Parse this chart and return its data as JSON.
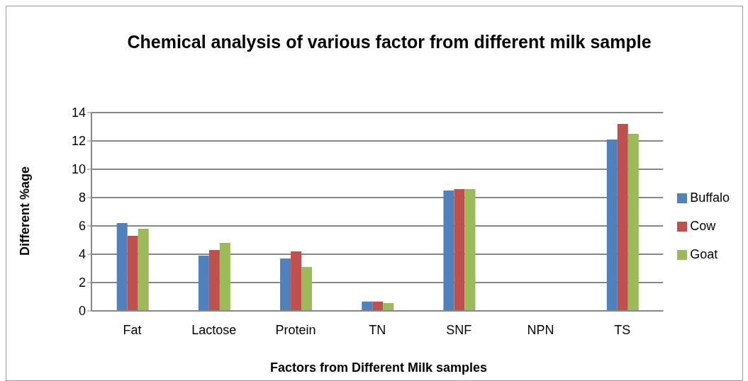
{
  "chart_data": {
    "type": "bar",
    "title": "Chemical analysis of various factor from different milk sample",
    "xlabel": "Factors from Different Milk samples",
    "ylabel": "Different %age",
    "categories": [
      "Fat",
      "Lactose",
      "Protein",
      "TN",
      "SNF",
      "NPN",
      "TS"
    ],
    "series": [
      {
        "name": "Buffalo",
        "color": "#4f81bd",
        "values": [
          6.2,
          3.9,
          3.7,
          0.66,
          8.5,
          0,
          12.1
        ]
      },
      {
        "name": "Cow",
        "color": "#c0504d",
        "values": [
          5.3,
          4.3,
          4.2,
          0.66,
          8.6,
          0,
          13.2
        ]
      },
      {
        "name": "Goat",
        "color": "#9bbb59",
        "values": [
          5.8,
          4.8,
          3.1,
          0.55,
          8.6,
          0,
          12.5
        ]
      }
    ],
    "ylim": [
      0,
      14
    ],
    "yticks": [
      0,
      2,
      4,
      6,
      8,
      10,
      12,
      14
    ],
    "grid": "y",
    "legend": "right"
  }
}
